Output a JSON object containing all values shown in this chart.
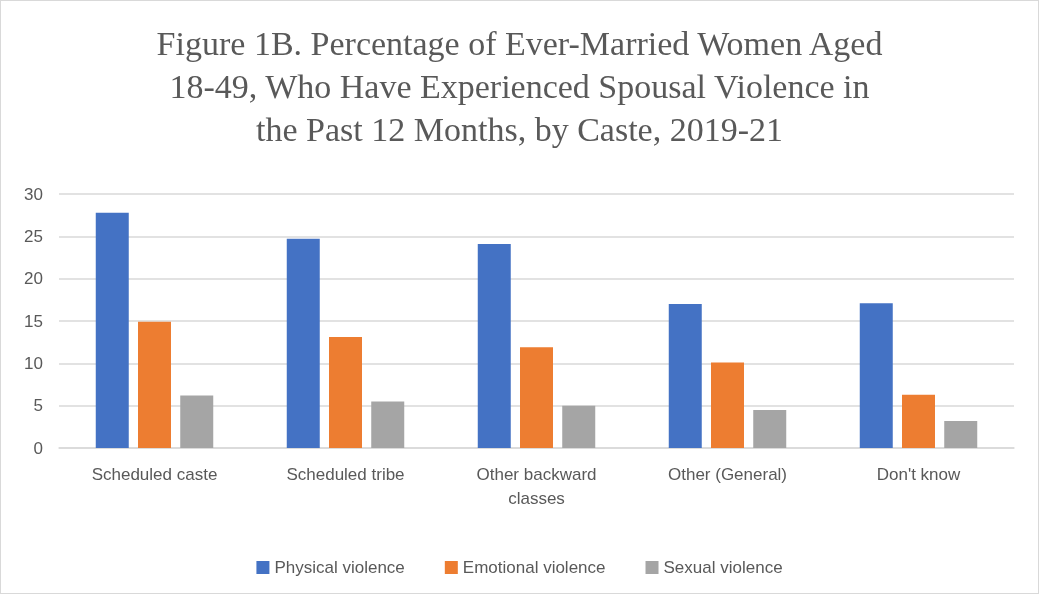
{
  "chart_data": {
    "type": "bar",
    "title": "Figure 1B. Percentage of Ever-Married Women Aged\n18-49, Who Have Experienced Spousal Violence in\nthe Past 12 Months, by Caste, 2019-21",
    "categories": [
      "Scheduled caste",
      "Scheduled tribe",
      "Other backward\nclasses",
      "Other (General)",
      "Don't know"
    ],
    "series": [
      {
        "name": "Physical violence",
        "color": "#4472c4",
        "values": [
          27.8,
          24.7,
          24.1,
          17.0,
          17.1
        ]
      },
      {
        "name": "Emotional violence",
        "color": "#ed7d31",
        "values": [
          14.9,
          13.1,
          11.9,
          10.1,
          6.3
        ]
      },
      {
        "name": "Sexual violence",
        "color": "#a5a5a5",
        "values": [
          6.2,
          5.5,
          5.0,
          4.5,
          3.2
        ]
      }
    ],
    "ylim": [
      0,
      30
    ],
    "yticks": [
      0,
      5,
      10,
      15,
      20,
      25,
      30
    ],
    "grid": "y",
    "legend": "bottom"
  }
}
